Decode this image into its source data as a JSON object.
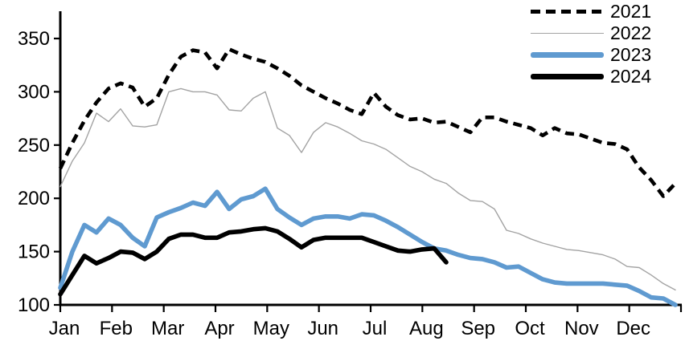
{
  "chart_data": {
    "type": "line",
    "title": "",
    "xlabel": "",
    "ylabel": "",
    "x_axis": {
      "tick_labels": [
        "Jan",
        "Feb",
        "Mar",
        "Apr",
        "May",
        "Jun",
        "Jul",
        "Aug",
        "Sep",
        "Oct",
        "Nov",
        "Dec"
      ],
      "note": "weekly data points within each month"
    },
    "y_axis": {
      "ticks": [
        100,
        150,
        200,
        250,
        300,
        350
      ],
      "range": [
        100,
        350
      ],
      "grid": false
    },
    "legend": {
      "position": "top-right",
      "entries": [
        "2021",
        "2022",
        "2023",
        "2024"
      ]
    },
    "colors": {
      "line_2021": "#000000",
      "line_2022": "#a3a3a3",
      "line_2023": "#5f9ad0",
      "line_2024": "#000000",
      "axis": "#000000"
    },
    "series": [
      {
        "name": "2021",
        "style": "dashed",
        "color": "#000000",
        "width": 4.6,
        "values": [
          228,
          252,
          273,
          290,
          303,
          308,
          304,
          286,
          294,
          316,
          333,
          339,
          337,
          322,
          340,
          335,
          331,
          328,
          322,
          315,
          306,
          300,
          294,
          289,
          283,
          279,
          299,
          286,
          278,
          274,
          275,
          271,
          272,
          267,
          262,
          276,
          276,
          272,
          269,
          266,
          259,
          266,
          261,
          260,
          256,
          252,
          251,
          246,
          229,
          217,
          202,
          214
        ]
      },
      {
        "name": "2022",
        "style": "solid",
        "color": "#a3a3a3",
        "width": 1.4,
        "values": [
          211,
          235,
          252,
          280,
          272,
          284,
          268,
          267,
          269,
          300,
          303,
          300,
          300,
          297,
          283,
          282,
          294,
          300,
          266,
          259,
          243,
          262,
          271,
          267,
          261,
          254,
          251,
          246,
          238,
          230,
          225,
          218,
          214,
          205,
          198,
          197,
          190,
          170,
          167,
          162,
          158,
          155,
          152,
          151,
          149,
          147,
          143,
          136,
          135,
          128,
          120,
          114
        ]
      },
      {
        "name": "2023",
        "style": "solid",
        "color": "#5f9ad0",
        "width": 5.6,
        "values": [
          116,
          150,
          175,
          168,
          181,
          175,
          163,
          155,
          182,
          187,
          191,
          196,
          193,
          206,
          190,
          199,
          202,
          209,
          190,
          182,
          175,
          181,
          183,
          183,
          181,
          185,
          184,
          179,
          173,
          166,
          159,
          153,
          151,
          147,
          144,
          143,
          140,
          135,
          136,
          130,
          124,
          121,
          120,
          120,
          120,
          120,
          119,
          118,
          113,
          107,
          106,
          100
        ]
      },
      {
        "name": "2024",
        "style": "solid",
        "color": "#000000",
        "width": 5.6,
        "values": [
          110,
          128,
          146,
          139,
          144,
          150,
          149,
          143,
          150,
          162,
          166,
          166,
          163,
          163,
          168,
          169,
          171,
          172,
          169,
          162,
          154,
          161,
          163,
          163,
          163,
          163,
          159,
          155,
          151,
          150,
          152,
          153,
          140
        ]
      }
    ]
  }
}
